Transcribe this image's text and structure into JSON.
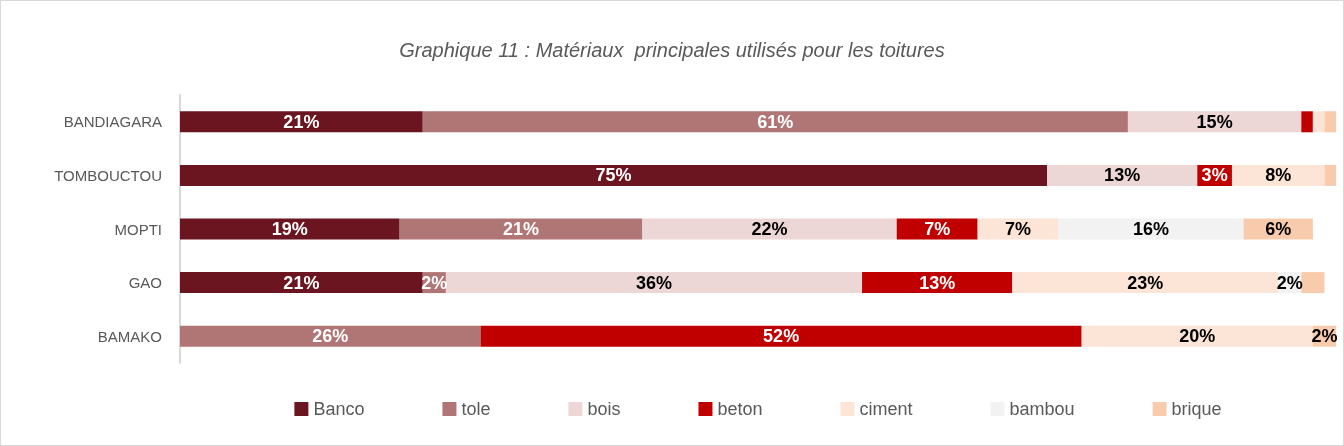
{
  "chart_data": {
    "type": "bar",
    "orientation": "horizontal",
    "stacked": true,
    "title": "Graphique 11 : Matériaux  principales utilisés pour les toitures",
    "categories": [
      "BANDIAGARA",
      "TOMBOUCTOU",
      "MOPTI",
      "GAO",
      "BAMAKO"
    ],
    "xlim": [
      0,
      100
    ],
    "tick_labels": "y",
    "grid": false,
    "legend": "bottom",
    "series": [
      {
        "name": "Banco",
        "color": "#6b1520",
        "values": [
          21,
          75,
          19,
          21,
          0
        ],
        "value_labels": [
          "21%",
          "75%",
          "19%",
          "21%",
          null
        ]
      },
      {
        "name": "tole",
        "color": "#b07575",
        "values": [
          61,
          0,
          21,
          2,
          26
        ],
        "value_labels": [
          "61%",
          null,
          "21%",
          "2%",
          "26%"
        ]
      },
      {
        "name": "bois",
        "color": "#ecd6d6",
        "values": [
          15,
          13,
          22,
          36,
          0
        ],
        "value_labels": [
          "15%",
          "13%",
          "22%",
          "36%",
          null
        ]
      },
      {
        "name": "beton",
        "color": "#c00000",
        "values": [
          1,
          3,
          7,
          13,
          52
        ],
        "value_labels": [
          null,
          "3%",
          "7%",
          "13%",
          "52%"
        ]
      },
      {
        "name": "ciment",
        "color": "#fce4d6",
        "values": [
          1,
          8,
          7,
          23,
          20
        ],
        "value_labels": [
          null,
          "8%",
          "7%",
          "23%",
          "20%"
        ]
      },
      {
        "name": "bambou",
        "color": "#f2f2f2",
        "values": [
          0,
          0,
          16,
          2,
          0
        ],
        "value_labels": [
          null,
          null,
          "16%",
          "2%",
          null
        ]
      },
      {
        "name": "brique",
        "color": "#f8cbad",
        "values": [
          1,
          1,
          6,
          2,
          2
        ],
        "value_labels": [
          null,
          null,
          "6%",
          null,
          "2%"
        ]
      }
    ]
  }
}
